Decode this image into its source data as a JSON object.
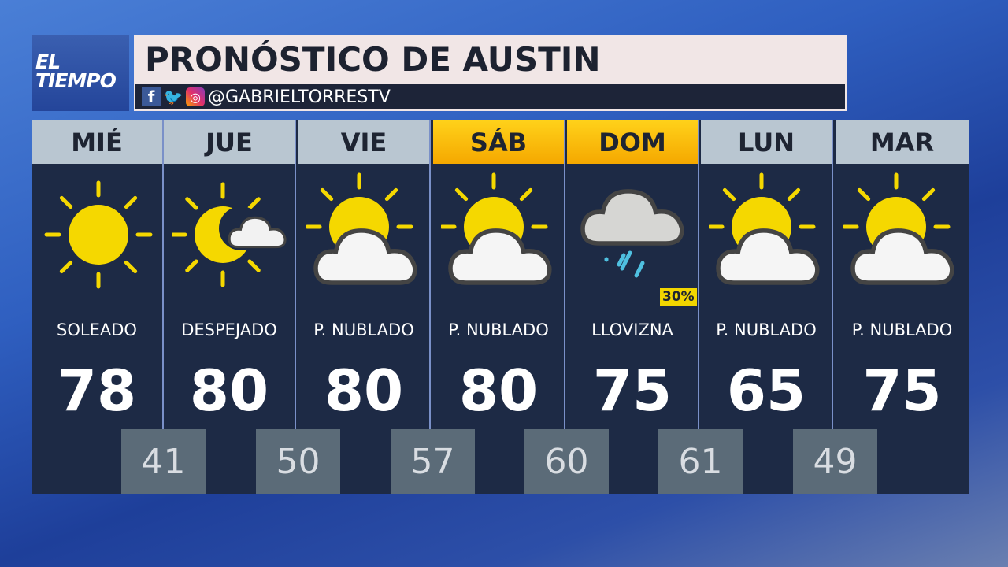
{
  "logo": {
    "line1": "EL",
    "line2": "TIEMPO"
  },
  "title": "PRONÓSTICO DE AUSTIN",
  "social": {
    "handle": "@GABRIELTORRESTV",
    "icons": [
      "facebook-icon",
      "twitter-icon",
      "instagram-icon"
    ]
  },
  "colors": {
    "weekend_header": "#f5b800",
    "weekday_header": "#b9c6d1",
    "panel": "#1d2a45",
    "low_box": "#5b6b78"
  },
  "days": [
    {
      "day": "MIÉ",
      "icon": "sunny",
      "condition": "SOLEADO",
      "high": "78",
      "low": "41",
      "weekend": false
    },
    {
      "day": "JUE",
      "icon": "moon-cloud",
      "condition": "DESPEJADO",
      "high": "80",
      "low": "50",
      "weekend": false
    },
    {
      "day": "VIE",
      "icon": "partly-cloudy",
      "condition": "P. NUBLADO",
      "high": "80",
      "low": "57",
      "weekend": false
    },
    {
      "day": "SÁB",
      "icon": "partly-cloudy",
      "condition": "P. NUBLADO",
      "high": "80",
      "low": "60",
      "weekend": true
    },
    {
      "day": "DOM",
      "icon": "drizzle",
      "condition": "LLOVIZNA",
      "high": "75",
      "low": "61",
      "weekend": true,
      "precip": "30%"
    },
    {
      "day": "LUN",
      "icon": "partly-cloudy",
      "condition": "P. NUBLADO",
      "high": "65",
      "low": "49",
      "weekend": false
    },
    {
      "day": "MAR",
      "icon": "partly-cloudy",
      "condition": "P. NUBLADO",
      "high": "75",
      "weekend": false
    }
  ]
}
